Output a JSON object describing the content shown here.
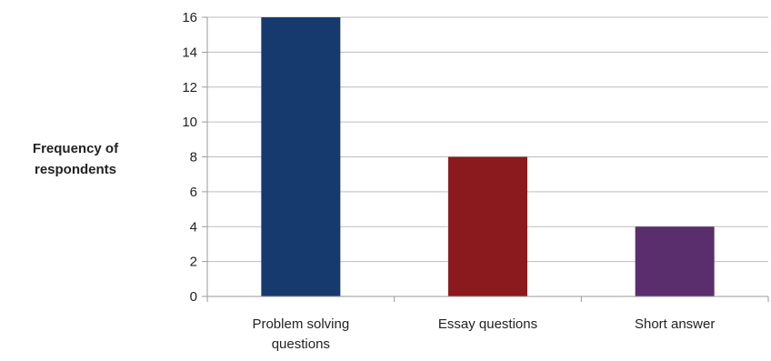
{
  "chart_data": {
    "type": "bar",
    "title": "",
    "xlabel": "",
    "ylabel": "Frequency of respondents",
    "ylabel_lines": [
      "Frequency of",
      "respondents"
    ],
    "ylim": [
      0,
      16
    ],
    "yticks": [
      0,
      2,
      4,
      6,
      8,
      10,
      12,
      14,
      16
    ],
    "grid": true,
    "categories": [
      "Problem solving questions",
      "Essay questions",
      "Short answer"
    ],
    "category_label_lines": [
      [
        "Problem solving",
        "questions"
      ],
      [
        "Essay questions"
      ],
      [
        "Short answer"
      ]
    ],
    "values": [
      16,
      8,
      4
    ],
    "bar_colors": [
      "#163A6E",
      "#8B1A1F",
      "#5A2E6C"
    ],
    "gridline_color": "#BDBDBD",
    "axis_color": "#9A9A9A"
  }
}
